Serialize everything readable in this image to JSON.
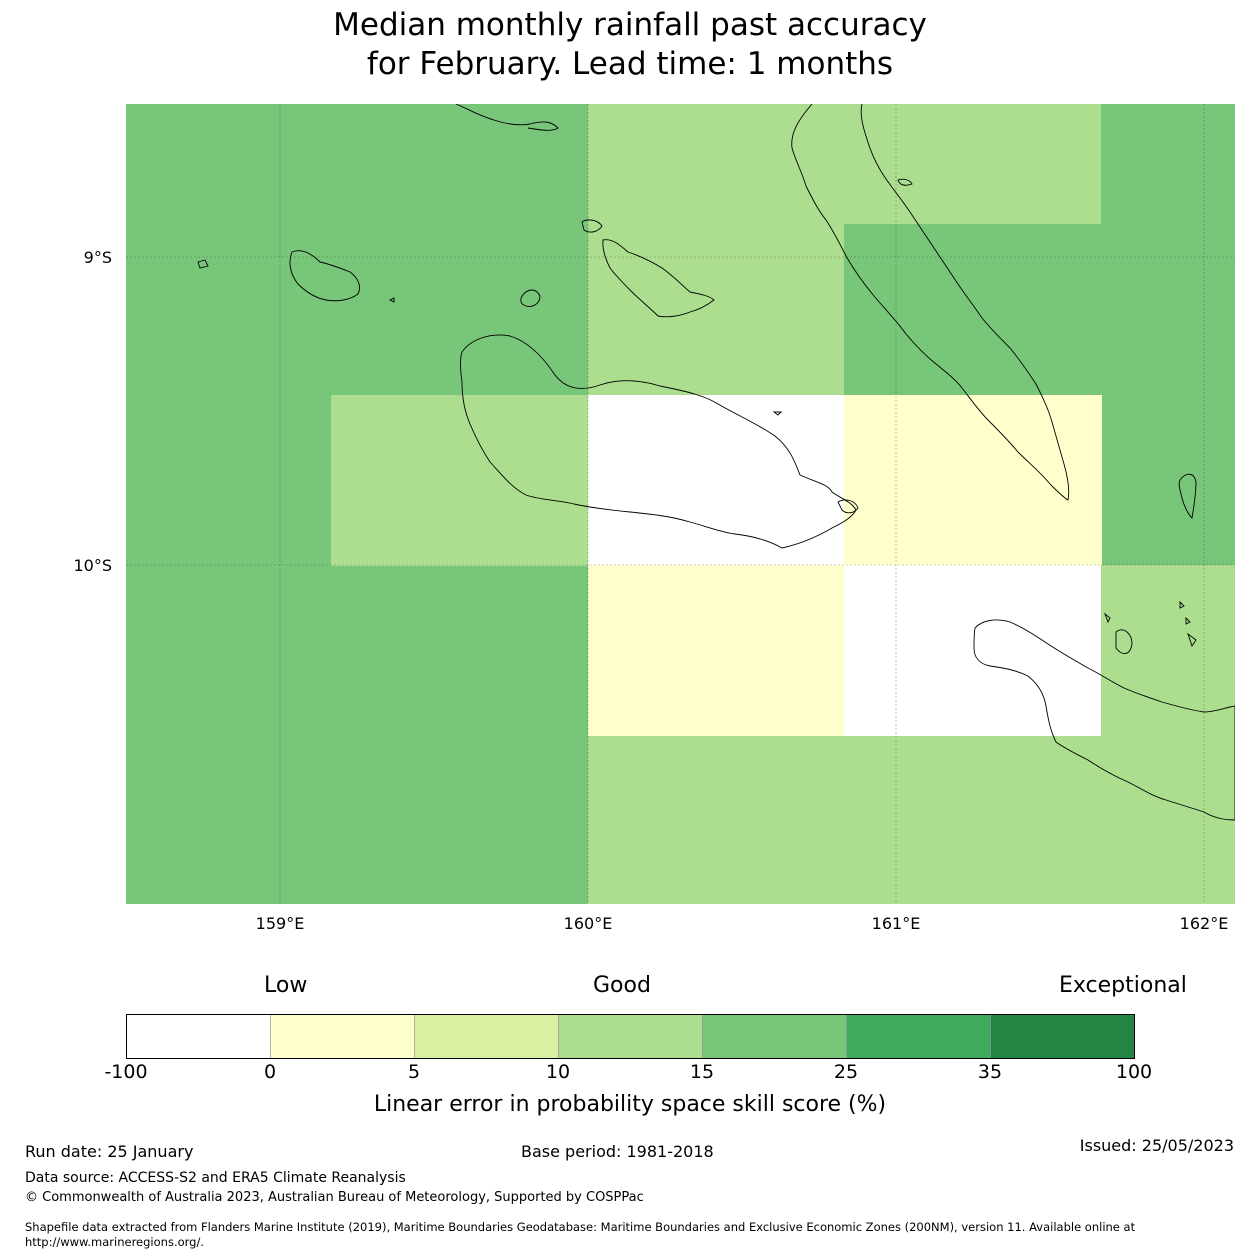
{
  "title": "Median monthly rainfall past accuracy\nfor February. Lead time: 1 months",
  "map": {
    "lat_labels": [
      "9°S",
      "10°S"
    ],
    "lon_labels": [
      "159°E",
      "160°E",
      "161°E",
      "162°E"
    ],
    "extent": {
      "lon_min": 158.5,
      "lon_max": 162.1,
      "lat_min": -11.1,
      "lat_max": -8.5
    },
    "grid": [
      {
        "lon_min": 158.5,
        "lon_max": 160.0,
        "lat_min": -11.1,
        "lat_max": -8.5,
        "category": "15-25"
      },
      {
        "lon_min": 160.0,
        "lon_max": 161.67,
        "lat_min": -8.89,
        "lat_max": -8.5,
        "category": "10-15"
      },
      {
        "lon_min": 161.67,
        "lon_max": 162.1,
        "lat_min": -10.0,
        "lat_max": -8.5,
        "category": "15-25"
      },
      {
        "lon_min": 160.0,
        "lon_max": 160.83,
        "lat_min": -9.44,
        "lat_max": -8.89,
        "category": "10-15"
      },
      {
        "lon_min": 160.83,
        "lon_max": 161.67,
        "lat_min": -9.44,
        "lat_max": -8.89,
        "category": "15-25"
      },
      {
        "lon_min": 159.17,
        "lon_max": 160.0,
        "lat_min": -10.0,
        "lat_max": -9.44,
        "category": "10-15"
      },
      {
        "lon_min": 160.0,
        "lon_max": 160.83,
        "lat_min": -10.0,
        "lat_max": -9.44,
        "category": "-100-0"
      },
      {
        "lon_min": 160.83,
        "lon_max": 161.67,
        "lat_min": -10.0,
        "lat_max": -9.44,
        "category": "0-5"
      },
      {
        "lon_min": 160.0,
        "lon_max": 160.83,
        "lat_min": -10.56,
        "lat_max": -10.0,
        "category": "0-5"
      },
      {
        "lon_min": 160.83,
        "lon_max": 161.67,
        "lat_min": -10.56,
        "lat_max": -10.0,
        "category": "-100-0"
      },
      {
        "lon_min": 161.67,
        "lon_max": 162.1,
        "lat_min": -10.56,
        "lat_max": -10.0,
        "category": "10-15"
      },
      {
        "lon_min": 160.0,
        "lon_max": 162.1,
        "lat_min": -11.1,
        "lat_max": -10.56,
        "category": "10-15"
      }
    ]
  },
  "legend": {
    "categories": [
      "Low",
      "Good",
      "Exceptional"
    ],
    "bounds": [
      "-100",
      "0",
      "5",
      "10",
      "15",
      "25",
      "35",
      "100"
    ],
    "colors": [
      "#ffffff",
      "#ffffcc",
      "#d9f0a3",
      "#addd8e",
      "#78c679",
      "#41ab5d",
      "#238443"
    ],
    "label": "Linear error in probability space skill score (%)"
  },
  "footer": {
    "run_date": "Run date: 25 January",
    "base_period": "Base period: 1981-2018",
    "issued": "Issued: 25/05/2023",
    "data_source": "Data source: ACCESS-S2 and ERA5 Climate Reanalysis",
    "copyright": "© Commonwealth of Australia 2023, Australian Bureau of Meteorology, Supported by COSPPac",
    "shapefile": "Shapefile data extracted from Flanders Marine Institute (2019), Maritime Boundaries Geodatabase: Maritime Boundaries and Exclusive Economic Zones (200NM), version 11. Available online at http://www.marineregions.org/."
  }
}
